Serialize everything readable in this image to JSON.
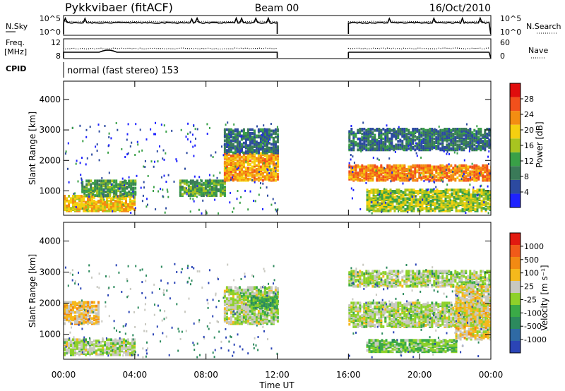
{
  "header": {
    "station": "Pykkvibaer (fitACF)",
    "beam": "Beam 00",
    "date": "16/Oct/2010"
  },
  "noise_panel": {
    "left_label": "N.Sky",
    "left_ticks": [
      "10^5",
      "10^0"
    ],
    "right_label": "N.Search",
    "right_ticks": [
      "10^5",
      "10^0"
    ]
  },
  "freq_panel": {
    "left_label_1": "Freq.",
    "left_label_2": "[MHz]",
    "left_ticks": [
      "12",
      "8"
    ],
    "right_label": "Nave",
    "right_ticks": [
      "60",
      "0"
    ]
  },
  "cpid": {
    "label": "CPID",
    "mode": "normal (fast stereo) 153"
  },
  "power_panel": {
    "y_label": "Slant Range [km]",
    "y_ticks": [
      "4000",
      "3000",
      "2000",
      "1000"
    ],
    "colorbar_label": "Power [dB]",
    "colorbar_ticks": [
      "28",
      "24",
      "20",
      "16",
      "12",
      "8",
      "4"
    ],
    "colors": [
      "#1e22ff",
      "#2c4aa0",
      "#3a7a58",
      "#39a047",
      "#a8c420",
      "#f5cf10",
      "#f38d12",
      "#f2501c",
      "#e00d0d"
    ]
  },
  "velocity_panel": {
    "y_label": "Slant Range [km]",
    "y_ticks": [
      "4000",
      "3000",
      "2000",
      "1000"
    ],
    "colorbar_label": "Velocity [m s⁻¹]",
    "colorbar_ticks": [
      "1000",
      "500",
      "100",
      "25",
      "-25",
      "-100",
      "-500",
      "-1000"
    ],
    "colors": [
      "#2b45b6",
      "#2f6aa4",
      "#2c8a5d",
      "#3aaa47",
      "#8ed12a",
      "#c8c8c0",
      "#f5b91c",
      "#f28a13",
      "#f15a19",
      "#e21a10"
    ]
  },
  "x_axis": {
    "ticks": [
      "00:00",
      "04:00",
      "08:00",
      "12:00",
      "16:00",
      "20:00",
      "00:00"
    ],
    "label": "Time UT"
  },
  "chart_data": {
    "type": "heatmap",
    "title": "Pykkvibaer (fitACF)   Beam 00   16/Oct/2010",
    "xlabel": "Time UT",
    "ylabel": "Slant Range [km]",
    "xlim": [
      "00:00",
      "24:00"
    ],
    "ylim": [
      200,
      4600
    ],
    "data_gap": [
      "12:00",
      "16:00"
    ],
    "power_scale_db": [
      0,
      32
    ],
    "velocity_scale_ms": [
      -1200,
      1200
    ],
    "power_bands": [
      {
        "start": "00:00",
        "end": "04:00",
        "range_km": [
          300,
          800
        ],
        "power_db": 20
      },
      {
        "start": "01:00",
        "end": "04:00",
        "range_km": [
          800,
          1300
        ],
        "power_db": 12
      },
      {
        "start": "06:30",
        "end": "09:00",
        "range_km": [
          800,
          1300
        ],
        "power_db": 12
      },
      {
        "start": "09:00",
        "end": "12:00",
        "range_km": [
          1300,
          2200
        ],
        "power_db": 22
      },
      {
        "start": "09:00",
        "end": "12:00",
        "range_km": [
          2200,
          3000
        ],
        "power_db": 8
      },
      {
        "start": "16:00",
        "end": "23:59",
        "range_km": [
          1300,
          1800
        ],
        "power_db": 24
      },
      {
        "start": "16:00",
        "end": "23:59",
        "range_km": [
          2300,
          3000
        ],
        "power_db": 8
      },
      {
        "start": "17:00",
        "end": "23:59",
        "range_km": [
          300,
          1000
        ],
        "power_db": 16
      }
    ],
    "velocity_bands": [
      {
        "start": "00:00",
        "end": "04:00",
        "range_km": [
          300,
          800
        ],
        "velocity_ms": 0
      },
      {
        "start": "00:00",
        "end": "02:00",
        "range_km": [
          1300,
          2000
        ],
        "velocity_ms": 300
      },
      {
        "start": "09:00",
        "end": "12:00",
        "range_km": [
          1300,
          2500
        ],
        "velocity_ms": 0
      },
      {
        "start": "10:30",
        "end": "12:00",
        "range_km": [
          1800,
          2200
        ],
        "velocity_ms": -400
      },
      {
        "start": "16:00",
        "end": "23:59",
        "range_km": [
          1200,
          2000
        ],
        "velocity_ms": 0
      },
      {
        "start": "16:00",
        "end": "23:59",
        "range_km": [
          2500,
          3000
        ],
        "velocity_ms": 0
      },
      {
        "start": "17:00",
        "end": "22:00",
        "range_km": [
          400,
          800
        ],
        "velocity_ms": -200
      },
      {
        "start": "22:00",
        "end": "23:59",
        "range_km": [
          800,
          2500
        ],
        "velocity_ms": 200
      }
    ]
  }
}
